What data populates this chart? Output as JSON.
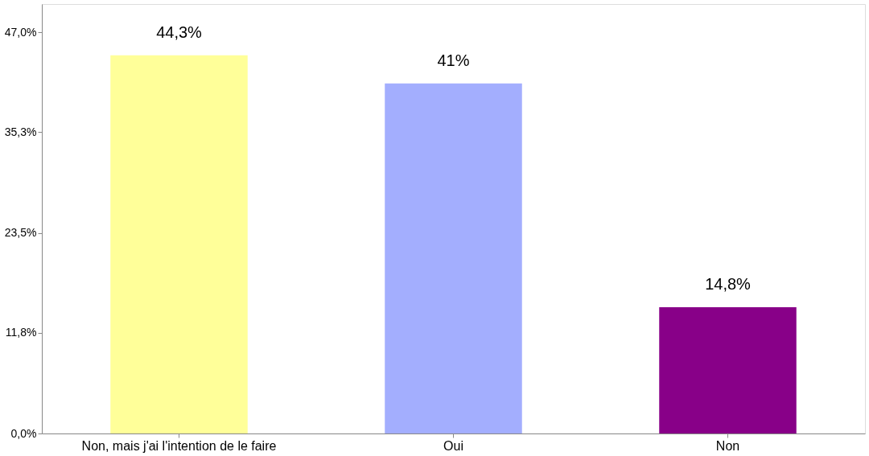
{
  "chart_data": {
    "type": "bar",
    "categories": [
      "Non, mais j'ai l'intention de le faire",
      "Oui",
      "Non"
    ],
    "values": [
      44.3,
      41,
      14.8
    ],
    "colors": [
      "#ffff99",
      "#a3aefe",
      "#880088"
    ],
    "value_labels": [
      "44,3%",
      "41%",
      "14,8%"
    ],
    "ylim": [
      0,
      50.3
    ],
    "yticks": [
      {
        "value": 0,
        "label": "0,0%"
      },
      {
        "value": 11.8,
        "label": "11,8%"
      },
      {
        "value": 23.5,
        "label": "23,5%"
      },
      {
        "value": 35.3,
        "label": "35,3%"
      },
      {
        "value": 47.0,
        "label": "47,0%"
      }
    ],
    "grid": false
  }
}
